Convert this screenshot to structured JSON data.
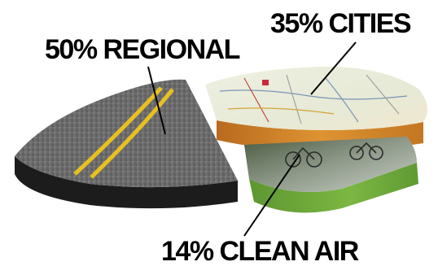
{
  "chart_data": {
    "type": "pie",
    "title": "",
    "slices": [
      {
        "label": "REGIONAL",
        "value": 50,
        "display": "50% REGIONAL",
        "texture": "road-asphalt-icon",
        "side_color": "#1b1b1b"
      },
      {
        "label": "CITIES",
        "value": 35,
        "display": "35% CITIES",
        "texture": "map-icon",
        "side_color": "#d58a2e"
      },
      {
        "label": "CLEAN AIR",
        "value": 14,
        "display": "14% CLEAN AIR",
        "texture": "cyclists-photo-icon",
        "side_color": "#6fa83a"
      }
    ],
    "style": "exploded 3D pie with photographic textures",
    "legend": "none (direct labels with leader lines)"
  }
}
